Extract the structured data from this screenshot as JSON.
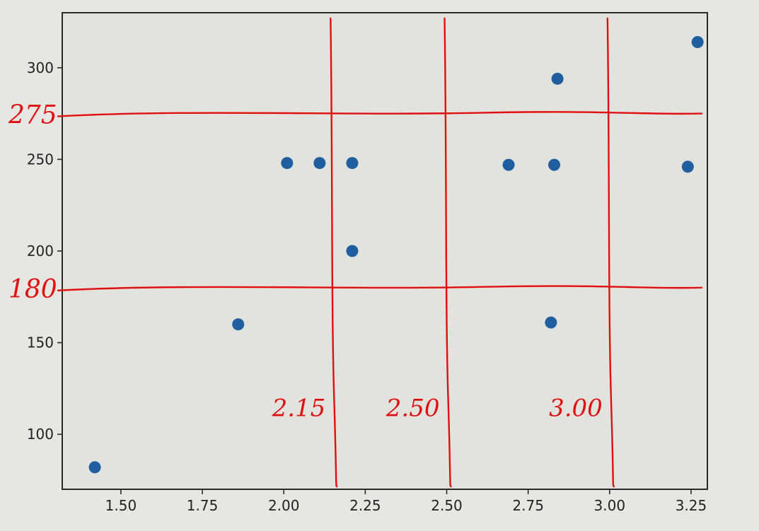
{
  "chart_data": {
    "type": "scatter",
    "title": "",
    "xlabel": "",
    "ylabel": "",
    "xlim": [
      1.32,
      3.3
    ],
    "ylim": [
      70,
      330
    ],
    "x_ticks": [
      1.5,
      1.75,
      2.0,
      2.25,
      2.5,
      2.75,
      3.0,
      3.25
    ],
    "x_tick_labels": [
      "1.50",
      "1.75",
      "2.00",
      "2.25",
      "2.50",
      "2.75",
      "3.00",
      "3.25"
    ],
    "y_ticks": [
      100,
      150,
      200,
      250,
      300
    ],
    "y_tick_labels": [
      "100",
      "150",
      "200",
      "250",
      "300"
    ],
    "grid": false,
    "series": [
      {
        "color": "#1f5fa0",
        "x": [
          1.42,
          1.86,
          2.01,
          2.11,
          2.21,
          2.21,
          2.69,
          2.82,
          2.83,
          2.84,
          3.24,
          3.27
        ],
        "y": [
          82,
          160,
          248,
          248,
          248,
          200,
          247,
          161,
          247,
          294,
          246,
          314
        ]
      }
    ],
    "annotations": {
      "color": "#e01010",
      "horizontal_lines": [
        {
          "value": 275,
          "label": "275"
        },
        {
          "value": 180,
          "label": "180"
        }
      ],
      "vertical_lines": [
        {
          "value": 2.15,
          "label": "2.15"
        },
        {
          "value": 2.5,
          "label": "2.50"
        },
        {
          "value": 3.0,
          "label": "3.00"
        }
      ]
    }
  }
}
